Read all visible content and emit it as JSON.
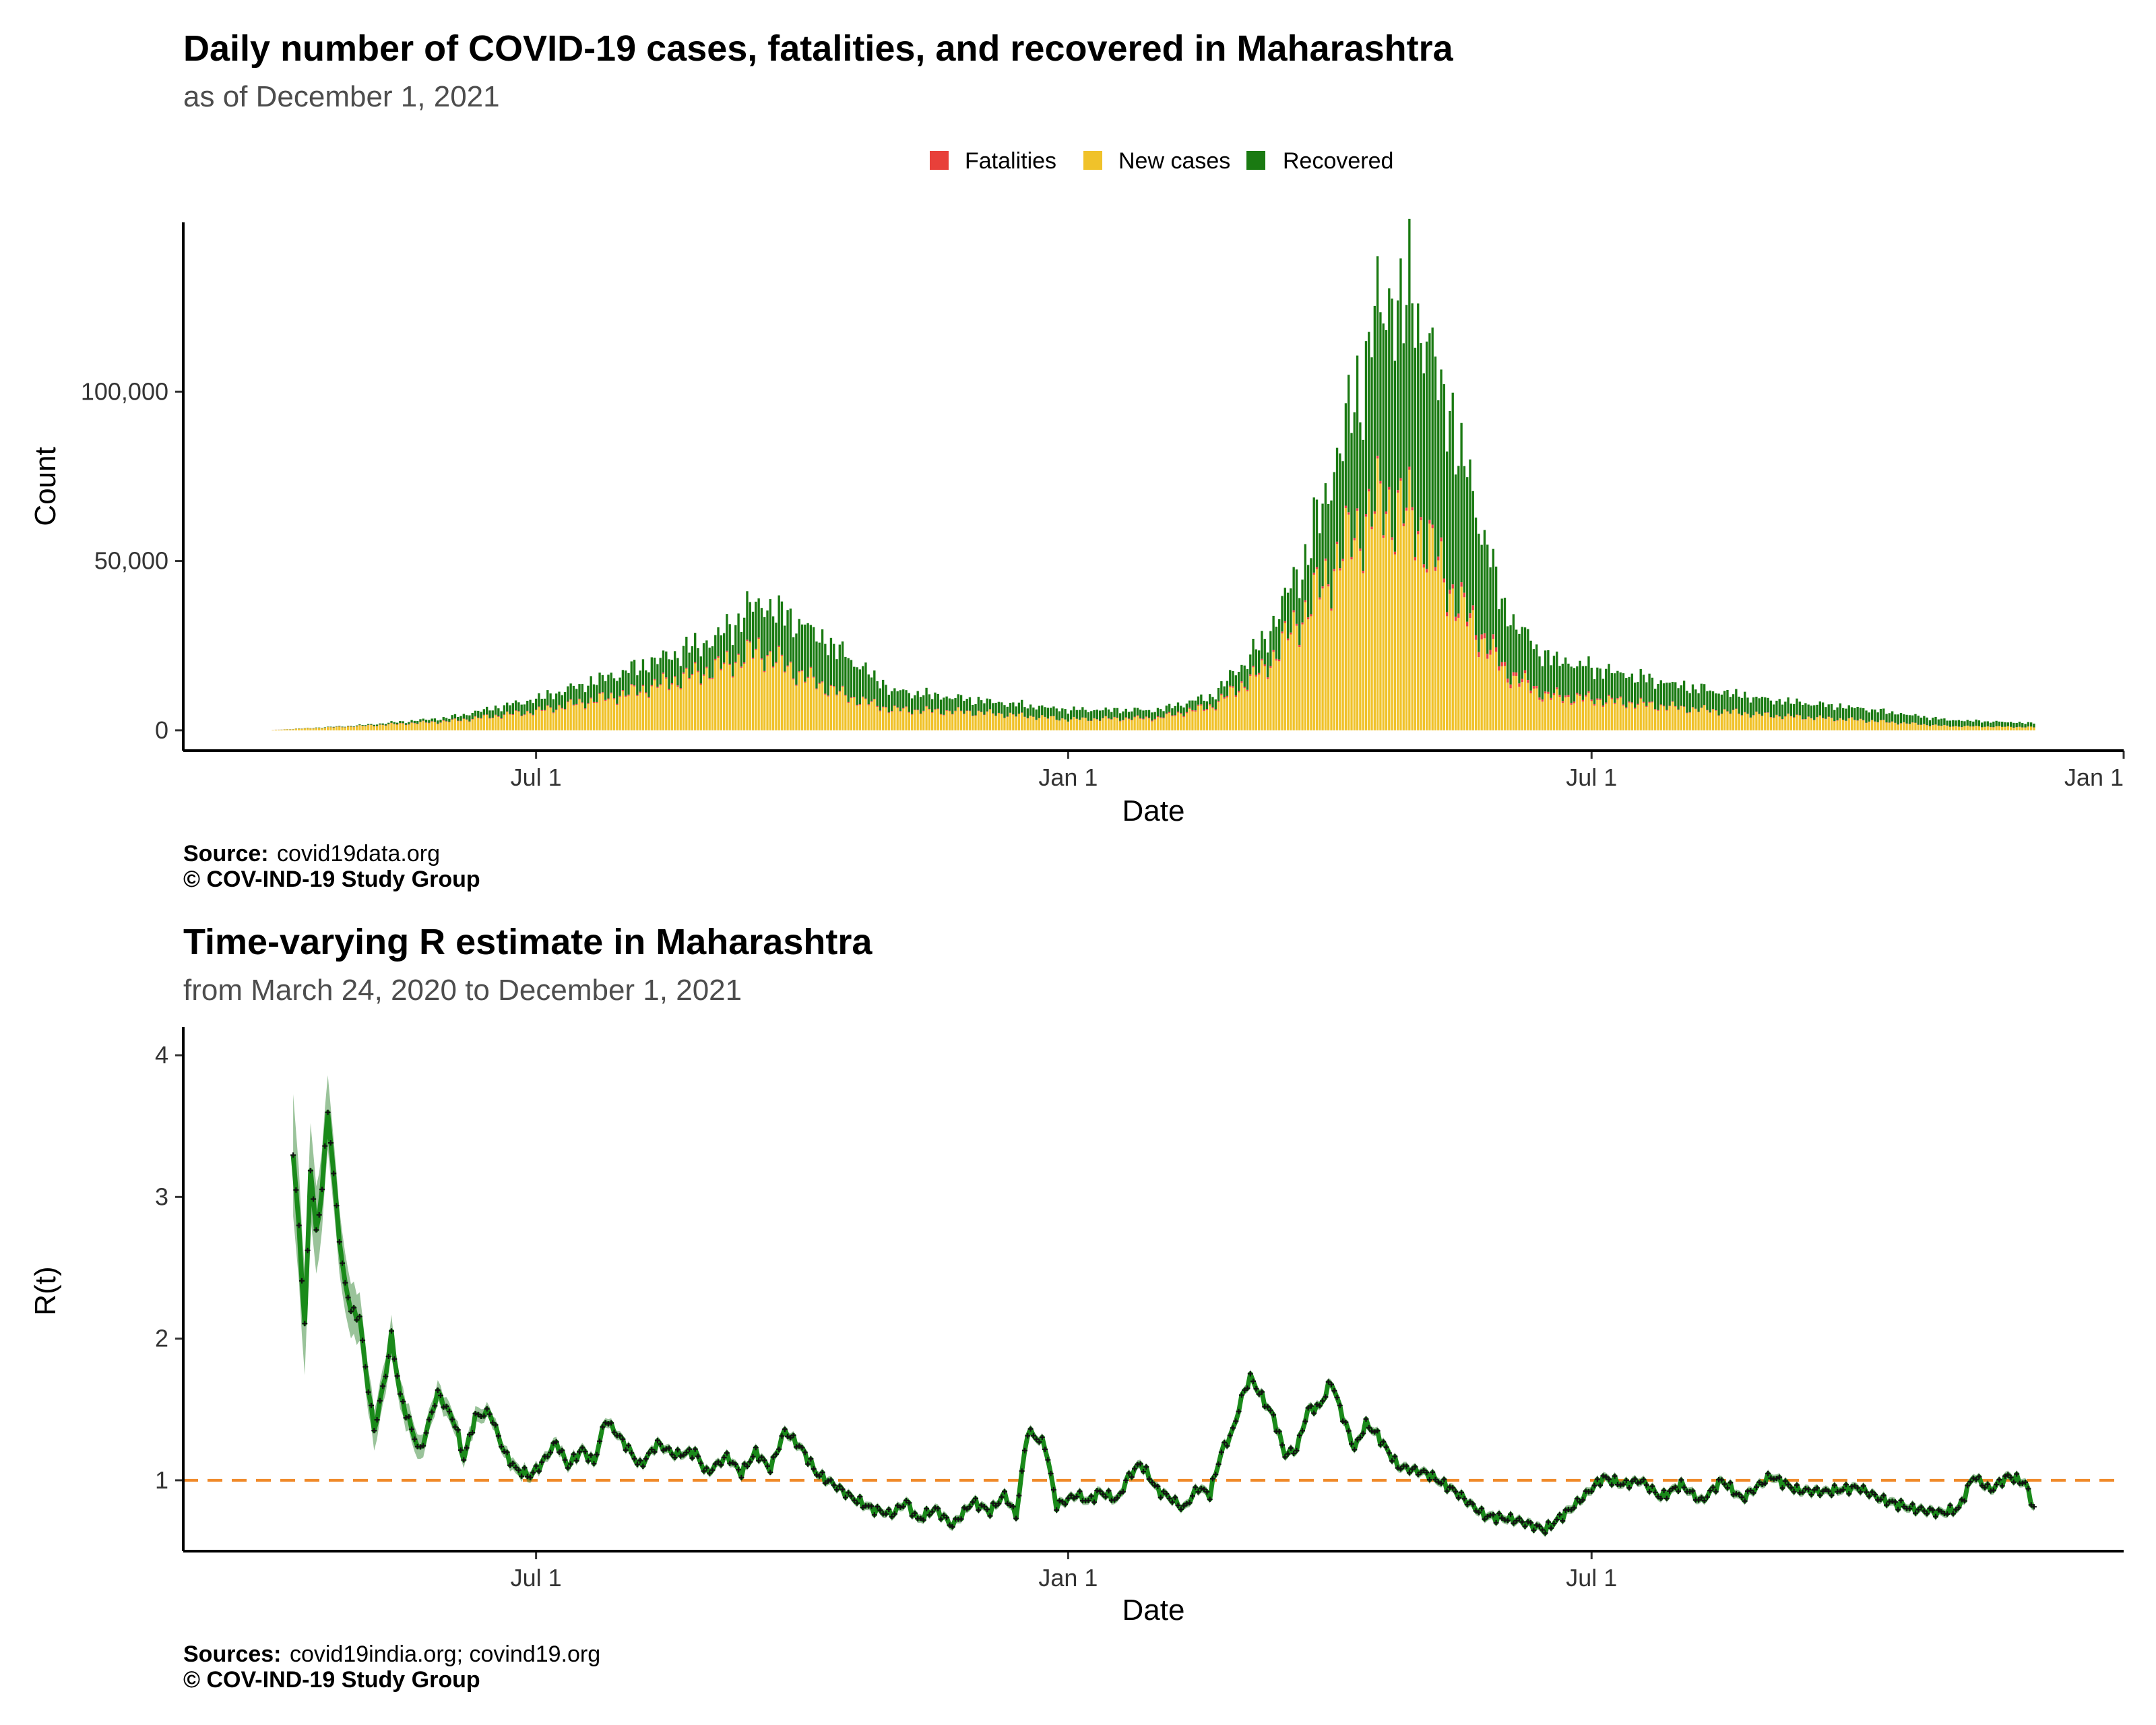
{
  "chart_data": [
    {
      "type": "bar",
      "title": "Daily number of COVID-19 cases, fatalities, and recovered in Maharashtra",
      "subtitle": "as of December  1, 2021",
      "xlabel": "Date",
      "ylabel": "Count",
      "x_ticks": [
        {
          "date": "2020-07-01",
          "label": "Jul 1"
        },
        {
          "date": "2021-01-01",
          "label": "Jan 1"
        },
        {
          "date": "2021-07-01",
          "label": "Jul 1"
        },
        {
          "date": "2022-01-01",
          "label": "Jan 1"
        }
      ],
      "y_ticks": [
        {
          "value": 0,
          "label": "0"
        },
        {
          "value": 50000,
          "label": "50,000"
        },
        {
          "value": 100000,
          "label": "100,000"
        }
      ],
      "xlim": [
        "2020-03-01",
        "2022-01-01"
      ],
      "ylim": [
        -6000,
        150000
      ],
      "stacking": "stacked",
      "legend": {
        "position": "top",
        "entries": [
          "Fatalities",
          "New cases",
          "Recovered"
        ]
      },
      "colors": {
        "Fatalities": "#e8403a",
        "New cases": "#f0c22a",
        "Recovered": "#1a7a12"
      },
      "start_date": "2020-04-01",
      "end_date": "2021-12-01",
      "series_keyframes": {
        "New cases": [
          [
            "2020-04-01",
            100
          ],
          [
            "2020-05-01",
            1200
          ],
          [
            "2020-06-01",
            2600
          ],
          [
            "2020-07-01",
            5500
          ],
          [
            "2020-08-01",
            10500
          ],
          [
            "2020-09-01",
            18000
          ],
          [
            "2020-09-16",
            23500
          ],
          [
            "2020-10-01",
            16000
          ],
          [
            "2020-10-16",
            10000
          ],
          [
            "2020-11-01",
            6000
          ],
          [
            "2020-12-01",
            5200
          ],
          [
            "2021-01-01",
            3200
          ],
          [
            "2021-02-01",
            3500
          ],
          [
            "2021-02-20",
            7000
          ],
          [
            "2021-03-10",
            18000
          ],
          [
            "2021-03-25",
            36000
          ],
          [
            "2021-04-10",
            58000
          ],
          [
            "2021-04-20",
            67000
          ],
          [
            "2021-05-01",
            62000
          ],
          [
            "2021-05-15",
            38000
          ],
          [
            "2021-06-01",
            17000
          ],
          [
            "2021-06-15",
            10000
          ],
          [
            "2021-07-01",
            9000
          ],
          [
            "2021-08-01",
            6500
          ],
          [
            "2021-09-01",
            4300
          ],
          [
            "2021-10-01",
            3000
          ],
          [
            "2021-11-01",
            1200
          ],
          [
            "2021-12-01",
            900
          ]
        ],
        "Recovered": [
          [
            "2020-04-01",
            0
          ],
          [
            "2020-05-01",
            200
          ],
          [
            "2020-06-01",
            1000
          ],
          [
            "2020-07-01",
            3500
          ],
          [
            "2020-08-01",
            6500
          ],
          [
            "2020-09-01",
            8500
          ],
          [
            "2020-09-16",
            14000
          ],
          [
            "2020-10-01",
            15000
          ],
          [
            "2020-10-16",
            12000
          ],
          [
            "2020-11-01",
            5500
          ],
          [
            "2020-12-01",
            3500
          ],
          [
            "2021-01-01",
            2800
          ],
          [
            "2021-02-01",
            2200
          ],
          [
            "2021-02-20",
            2800
          ],
          [
            "2021-03-10",
            8000
          ],
          [
            "2021-03-25",
            16000
          ],
          [
            "2021-04-10",
            38000
          ],
          [
            "2021-04-20",
            58000
          ],
          [
            "2021-05-01",
            63000
          ],
          [
            "2021-05-15",
            48000
          ],
          [
            "2021-06-01",
            17000
          ],
          [
            "2021-06-15",
            11000
          ],
          [
            "2021-07-01",
            9000
          ],
          [
            "2021-08-01",
            6500
          ],
          [
            "2021-09-01",
            4500
          ],
          [
            "2021-10-01",
            3500
          ],
          [
            "2021-11-01",
            1800
          ],
          [
            "2021-12-01",
            1200
          ]
        ],
        "Fatalities": [
          [
            "2020-04-01",
            10
          ],
          [
            "2020-07-01",
            200
          ],
          [
            "2020-09-01",
            420
          ],
          [
            "2020-10-01",
            300
          ],
          [
            "2021-01-01",
            50
          ],
          [
            "2021-04-25",
            800
          ],
          [
            "2021-05-25",
            1500
          ],
          [
            "2021-06-15",
            600
          ],
          [
            "2021-08-01",
            150
          ],
          [
            "2021-12-01",
            30
          ]
        ]
      },
      "annotations": {
        "peak_date": "2021-04-18",
        "peak_total": 140000
      }
    },
    {
      "type": "line",
      "title": "Time-varying R estimate in Maharashtra",
      "subtitle": "from March 24, 2020 to December  1, 2021",
      "xlabel": "Date",
      "ylabel": "R(t)",
      "x_ticks": [
        {
          "date": "2020-07-01",
          "label": "Jul 1"
        },
        {
          "date": "2021-01-01",
          "label": "Jan 1"
        },
        {
          "date": "2021-07-01",
          "label": "Jul 1"
        }
      ],
      "y_ticks": [
        {
          "value": 1,
          "label": "1"
        },
        {
          "value": 2,
          "label": "2"
        },
        {
          "value": 3,
          "label": "3"
        },
        {
          "value": 4,
          "label": "4"
        }
      ],
      "xlim": [
        "2020-03-01",
        "2022-01-01"
      ],
      "ylim": [
        0.5,
        4.2
      ],
      "reference_line": {
        "value": 1,
        "color": "#f08a2a",
        "style": "dashed"
      },
      "band_color": "#1f7a1f",
      "line_color": "#1a8a1a",
      "marker_color": "#111111",
      "keyframes": [
        [
          "2020-04-08",
          3.28
        ],
        [
          "2020-04-10",
          2.8
        ],
        [
          "2020-04-12",
          2.07
        ],
        [
          "2020-04-14",
          3.2
        ],
        [
          "2020-04-16",
          2.75
        ],
        [
          "2020-04-18",
          3.05
        ],
        [
          "2020-04-20",
          3.62
        ],
        [
          "2020-04-22",
          3.15
        ],
        [
          "2020-04-25",
          2.5
        ],
        [
          "2020-04-28",
          2.2
        ],
        [
          "2020-05-01",
          2.15
        ],
        [
          "2020-05-03",
          1.8
        ],
        [
          "2020-05-06",
          1.35
        ],
        [
          "2020-05-10",
          1.75
        ],
        [
          "2020-05-12",
          2.02
        ],
        [
          "2020-05-15",
          1.6
        ],
        [
          "2020-05-20",
          1.3
        ],
        [
          "2020-05-22",
          1.2
        ],
        [
          "2020-05-28",
          1.62
        ],
        [
          "2020-06-03",
          1.4
        ],
        [
          "2020-06-06",
          1.15
        ],
        [
          "2020-06-10",
          1.45
        ],
        [
          "2020-06-15",
          1.48
        ],
        [
          "2020-06-20",
          1.2
        ],
        [
          "2020-06-24",
          1.08
        ],
        [
          "2020-06-29",
          1.03
        ],
        [
          "2020-07-03",
          1.12
        ],
        [
          "2020-07-08",
          1.27
        ],
        [
          "2020-07-12",
          1.1
        ],
        [
          "2020-07-17",
          1.22
        ],
        [
          "2020-07-21",
          1.12
        ],
        [
          "2020-07-25",
          1.43
        ],
        [
          "2020-08-01",
          1.25
        ],
        [
          "2020-08-06",
          1.1
        ],
        [
          "2020-08-12",
          1.26
        ],
        [
          "2020-08-18",
          1.18
        ],
        [
          "2020-08-25",
          1.2
        ],
        [
          "2020-08-29",
          1.05
        ],
        [
          "2020-09-05",
          1.17
        ],
        [
          "2020-09-10",
          1.05
        ],
        [
          "2020-09-15",
          1.2
        ],
        [
          "2020-09-20",
          1.08
        ],
        [
          "2020-09-25",
          1.35
        ],
        [
          "2020-10-01",
          1.22
        ],
        [
          "2020-10-06",
          1.05
        ],
        [
          "2020-10-12",
          0.97
        ],
        [
          "2020-10-18",
          0.88
        ],
        [
          "2020-10-25",
          0.8
        ],
        [
          "2020-11-01",
          0.76
        ],
        [
          "2020-11-06",
          0.85
        ],
        [
          "2020-11-10",
          0.72
        ],
        [
          "2020-11-16",
          0.8
        ],
        [
          "2020-11-22",
          0.68
        ],
        [
          "2020-11-29",
          0.85
        ],
        [
          "2020-12-05",
          0.78
        ],
        [
          "2020-12-10",
          0.9
        ],
        [
          "2020-12-14",
          0.75
        ],
        [
          "2020-12-18",
          1.35
        ],
        [
          "2020-12-24",
          1.25
        ],
        [
          "2020-12-28",
          0.82
        ],
        [
          "2021-01-04",
          0.9
        ],
        [
          "2021-01-08",
          0.85
        ],
        [
          "2021-01-12",
          0.92
        ],
        [
          "2021-01-18",
          0.86
        ],
        [
          "2021-01-22",
          1.03
        ],
        [
          "2021-01-26",
          1.12
        ],
        [
          "2021-02-01",
          0.93
        ],
        [
          "2021-02-05",
          0.88
        ],
        [
          "2021-02-10",
          0.8
        ],
        [
          "2021-02-15",
          0.95
        ],
        [
          "2021-02-19",
          0.9
        ],
        [
          "2021-02-23",
          1.2
        ],
        [
          "2021-02-27",
          1.35
        ],
        [
          "2021-03-02",
          1.58
        ],
        [
          "2021-03-05",
          1.73
        ],
        [
          "2021-03-10",
          1.55
        ],
        [
          "2021-03-13",
          1.45
        ],
        [
          "2021-03-17",
          1.18
        ],
        [
          "2021-03-21",
          1.22
        ],
        [
          "2021-03-25",
          1.5
        ],
        [
          "2021-03-29",
          1.52
        ],
        [
          "2021-04-02",
          1.7
        ],
        [
          "2021-04-06",
          1.45
        ],
        [
          "2021-04-10",
          1.22
        ],
        [
          "2021-04-14",
          1.4
        ],
        [
          "2021-04-18",
          1.32
        ],
        [
          "2021-04-25",
          1.1
        ],
        [
          "2021-05-05",
          1.05
        ],
        [
          "2021-05-15",
          0.92
        ],
        [
          "2021-05-25",
          0.75
        ],
        [
          "2021-06-05",
          0.72
        ],
        [
          "2021-06-15",
          0.65
        ],
        [
          "2021-06-25",
          0.82
        ],
        [
          "2021-07-05",
          1.02
        ],
        [
          "2021-07-12",
          0.97
        ],
        [
          "2021-07-18",
          1.0
        ],
        [
          "2021-07-25",
          0.88
        ],
        [
          "2021-08-01",
          0.97
        ],
        [
          "2021-08-08",
          0.85
        ],
        [
          "2021-08-15",
          1.0
        ],
        [
          "2021-08-22",
          0.87
        ],
        [
          "2021-09-01",
          1.03
        ],
        [
          "2021-09-10",
          0.93
        ],
        [
          "2021-09-20",
          0.92
        ],
        [
          "2021-10-01",
          0.95
        ],
        [
          "2021-10-10",
          0.86
        ],
        [
          "2021-10-20",
          0.8
        ],
        [
          "2021-10-30",
          0.77
        ],
        [
          "2021-11-05",
          0.8
        ],
        [
          "2021-11-10",
          1.03
        ],
        [
          "2021-11-16",
          0.93
        ],
        [
          "2021-11-22",
          1.03
        ],
        [
          "2021-11-28",
          0.98
        ],
        [
          "2021-12-01",
          0.8
        ]
      ]
    }
  ],
  "captions": {
    "top_source_label": "Source:",
    "top_source_text": "covid19data.org",
    "top_copyright": "© COV-IND-19 Study Group",
    "bottom_source_label": "Sources:",
    "bottom_source_text": "covid19india.org; covind19.org",
    "bottom_copyright": "© COV-IND-19 Study Group"
  }
}
